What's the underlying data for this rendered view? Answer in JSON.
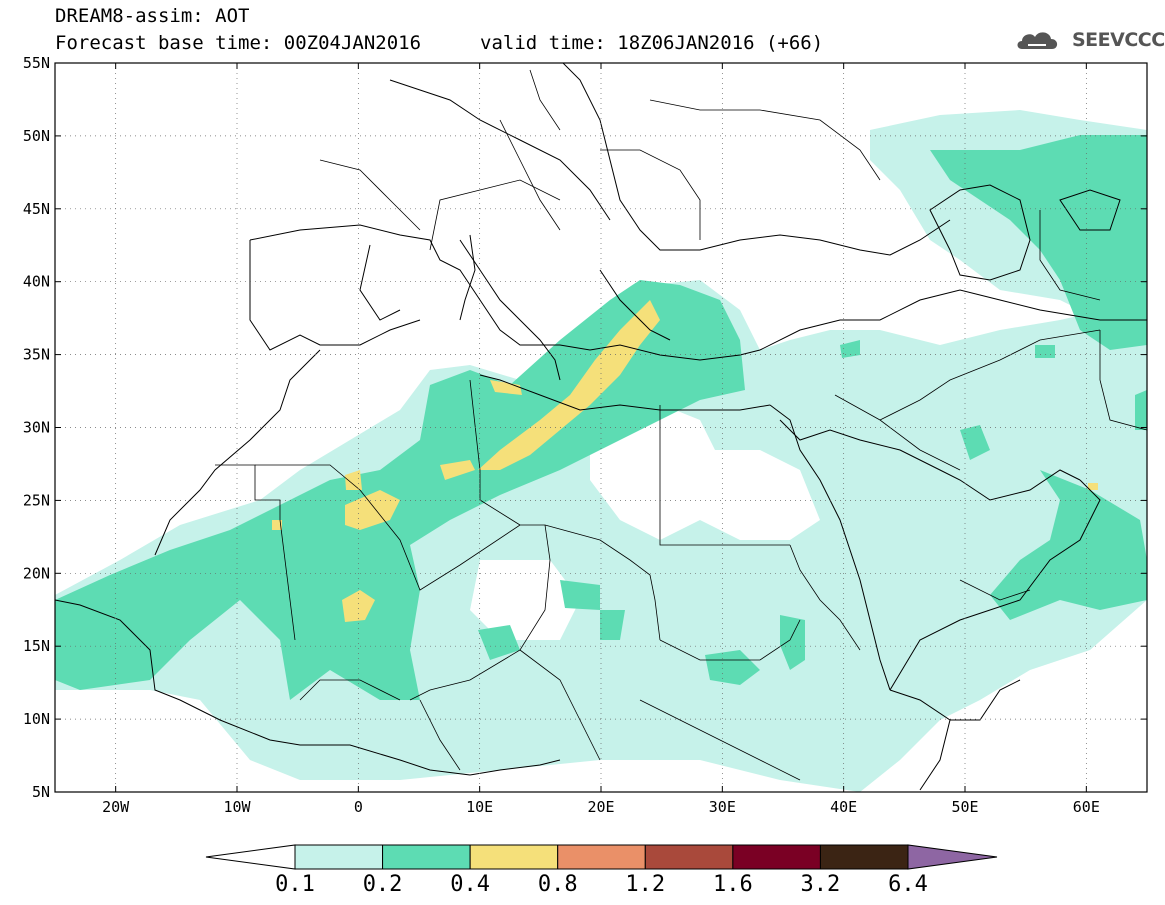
{
  "header": {
    "title": "DREAM8-assim: AOT",
    "base_time": "Forecast base time: 00Z04JAN2016",
    "valid_time": "valid time: 18Z06JAN2016 (+66)"
  },
  "logo": {
    "text": "SEEVCCC",
    "icon": "cloud-icon"
  },
  "map": {
    "lon_ticks": [
      "20W",
      "10W",
      "0",
      "10E",
      "20E",
      "30E",
      "40E",
      "50E",
      "60E"
    ],
    "lat_ticks": [
      "55N",
      "50N",
      "45N",
      "40N",
      "35N",
      "30N",
      "25N",
      "20N",
      "15N",
      "10N",
      "5N"
    ],
    "grid": "dotted"
  },
  "colorbar": {
    "labels": [
      "0.1",
      "0.2",
      "0.4",
      "0.8",
      "1.2",
      "1.6",
      "3.2",
      "6.4"
    ],
    "colors": [
      "#c6f2ea",
      "#5ddcb3",
      "#f5e07a",
      "#ea9068",
      "#a9493b",
      "#7a0024",
      "#3b2414",
      "#8e66a3"
    ]
  }
}
